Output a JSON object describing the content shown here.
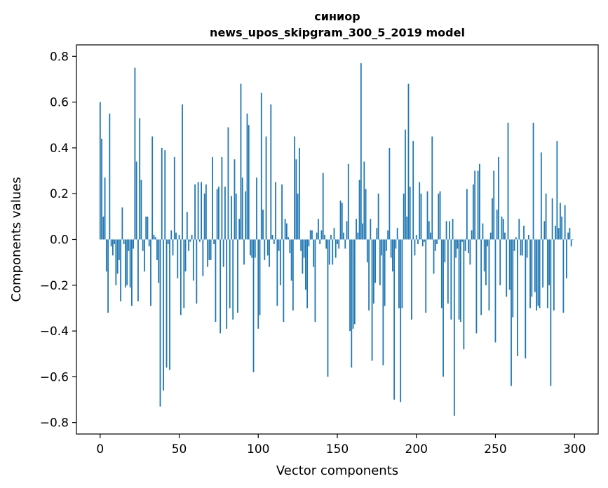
{
  "chart_data": {
    "type": "bar",
    "title_lines": [
      "синиор",
      "news_upos_skipgram_300_5_2019 model"
    ],
    "xlabel": "Vector components",
    "ylabel": "Components values",
    "xlim": [
      -15,
      315
    ],
    "ylim": [
      -0.85,
      0.85
    ],
    "xticks": [
      0,
      50,
      100,
      150,
      200,
      250,
      300
    ],
    "yticks": [
      0.8,
      0.6,
      0.4,
      0.2,
      0.0,
      -0.2,
      -0.4,
      -0.6,
      -0.8
    ],
    "ytick_labels": [
      "0.8",
      "0.6",
      "0.4",
      "0.2",
      "0.0",
      "−0.2",
      "−0.4",
      "−0.6",
      "−0.8"
    ],
    "bar_color": "#1f77b4",
    "grid": false,
    "values": [
      0.6,
      0.44,
      0.1,
      0.27,
      -0.14,
      -0.32,
      0.55,
      -0.03,
      -0.07,
      -0.02,
      -0.2,
      -0.15,
      -0.09,
      -0.27,
      0.14,
      -0.02,
      -0.21,
      -0.2,
      -0.05,
      -0.21,
      -0.29,
      -0.04,
      0.75,
      0.34,
      -0.27,
      0.53,
      0.26,
      -0.05,
      -0.14,
      0.1,
      0.1,
      -0.03,
      -0.29,
      0.45,
      0.02,
      0.01,
      -0.09,
      -0.19,
      -0.73,
      0.4,
      -0.66,
      0.39,
      -0.56,
      -0.02,
      -0.57,
      0.04,
      -0.07,
      0.36,
      0.03,
      -0.17,
      0.02,
      -0.33,
      0.59,
      -0.3,
      -0.14,
      0.12,
      -0.05,
      -0.01,
      0.02,
      -0.18,
      0.24,
      -0.28,
      0.25,
      -0.01,
      0.25,
      -0.16,
      0.2,
      0.24,
      -0.12,
      -0.09,
      -0.09,
      0.36,
      -0.02,
      -0.36,
      0.22,
      0.23,
      -0.41,
      0.36,
      -0.12,
      0.23,
      -0.39,
      0.49,
      -0.3,
      0.19,
      -0.35,
      0.35,
      0.2,
      -0.32,
      0.09,
      0.68,
      0.27,
      -0.11,
      0.21,
      0.55,
      0.5,
      -0.07,
      -0.08,
      -0.58,
      -0.08,
      0.27,
      -0.39,
      -0.33,
      0.64,
      0.13,
      -0.09,
      0.45,
      -0.07,
      -0.12,
      0.59,
      0.02,
      -0.02,
      0.25,
      -0.29,
      -0.05,
      -0.2,
      0.24,
      -0.36,
      0.09,
      0.07,
      0.01,
      -0.06,
      -0.18,
      -0.31,
      0.45,
      0.35,
      0.2,
      0.4,
      -0.05,
      -0.15,
      -0.08,
      -0.22,
      -0.3,
      -0.03,
      0.04,
      0.04,
      -0.12,
      -0.36,
      0.03,
      0.09,
      -0.02,
      0.04,
      0.29,
      0.02,
      -0.04,
      -0.6,
      -0.11,
      0.02,
      -0.11,
      0.05,
      -0.08,
      -0.02,
      -0.04,
      0.17,
      0.16,
      0.03,
      -0.04,
      0.08,
      0.33,
      -0.4,
      -0.56,
      -0.39,
      -0.37,
      0.09,
      0.03,
      0.26,
      0.77,
      0.07,
      0.34,
      0.22,
      -0.1,
      -0.31,
      0.09,
      -0.53,
      -0.28,
      -0.19,
      0.05,
      0.2,
      -0.2,
      -0.07,
      -0.55,
      -0.29,
      -0.05,
      0.04,
      0.4,
      -0.08,
      -0.14,
      -0.7,
      -0.04,
      0.05,
      -0.3,
      -0.71,
      -0.3,
      0.2,
      0.48,
      0.1,
      0.68,
      0.23,
      -0.35,
      0.43,
      -0.07,
      0.02,
      -0.02,
      0.25,
      0.2,
      -0.03,
      -0.01,
      -0.32,
      0.21,
      0.08,
      0.03,
      0.45,
      -0.15,
      -0.05,
      -0.02,
      0.2,
      0.21,
      -0.3,
      -0.6,
      -0.1,
      0.08,
      -0.28,
      0.08,
      -0.35,
      0.09,
      -0.77,
      -0.08,
      -0.04,
      -0.35,
      -0.36,
      -0.01,
      -0.48,
      -0.05,
      0.22,
      -0.06,
      -0.11,
      0.04,
      0.24,
      0.3,
      -0.41,
      0.3,
      0.33,
      -0.33,
      0.07,
      -0.14,
      -0.2,
      -0.03,
      -0.31,
      0.03,
      0.18,
      0.3,
      -0.45,
      0.13,
      0.36,
      -0.2,
      0.1,
      0.09,
      0.03,
      -0.25,
      0.51,
      -0.22,
      -0.64,
      -0.34,
      -0.05,
      0.01,
      -0.51,
      0.09,
      -0.07,
      -0.07,
      0.06,
      -0.52,
      -0.08,
      0.02,
      -0.3,
      -0.25,
      0.51,
      -0.23,
      -0.31,
      -0.29,
      -0.3,
      0.38,
      -0.21,
      0.08,
      0.2,
      -0.3,
      -0.2,
      -0.64,
      0.18,
      -0.31,
      0.06,
      0.43,
      0.05,
      0.16,
      0.1,
      -0.32,
      0.15,
      -0.17,
      0.03,
      0.05,
      -0.03,
      0.0
    ]
  }
}
